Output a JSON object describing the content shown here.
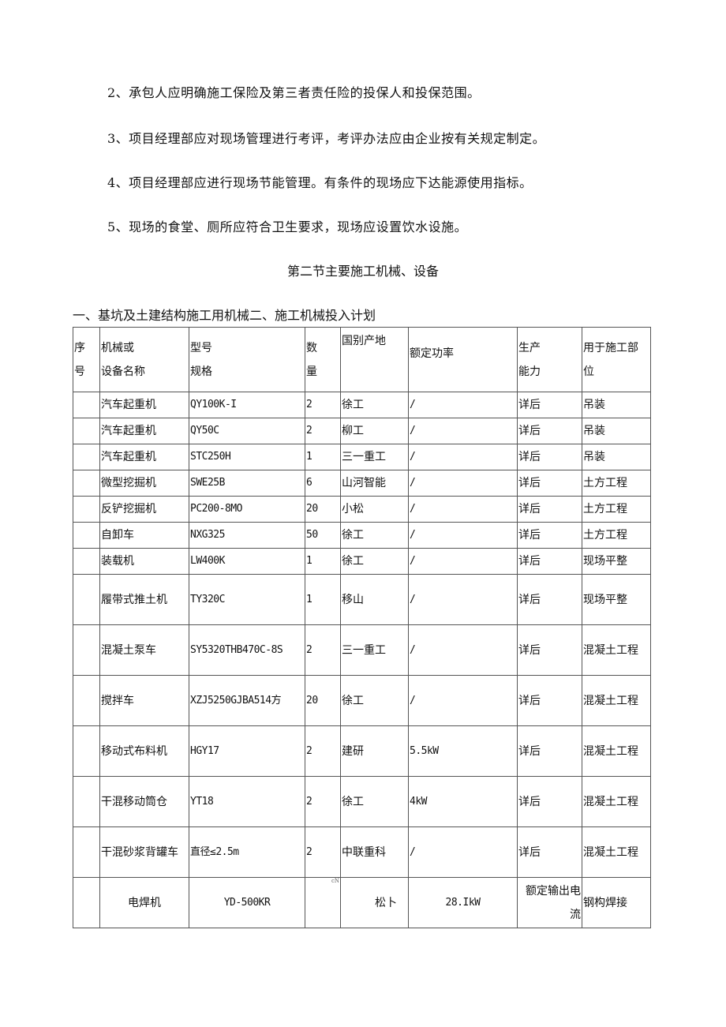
{
  "paragraphs": [
    "2、承包人应明确施工保险及第三者责任险的投保人和投保范围。",
    "3、项目经理部应对现场管理进行考评，考评办法应由企业按有关规定制定。",
    "4、项目经理部应进行现场节能管理。有条件的现场应下达能源使用指标。",
    "5、现场的食堂、厕所应符合卫生要求，现场应设置饮水设施。"
  ],
  "section_title": "第二节主要施工机械、设备",
  "subtitle": "一、基坑及土建结构施工用机械二、施工机械投入计划",
  "table": {
    "headers": [
      [
        "序",
        "号"
      ],
      [
        "机械或",
        "设备名称"
      ],
      [
        "型号",
        "规格"
      ],
      [
        "数",
        "量"
      ],
      [
        "国别产地"
      ],
      [
        "额定功率"
      ],
      [
        "生产",
        "能力"
      ],
      [
        "用于施工部",
        "位"
      ]
    ],
    "rows": [
      [
        "",
        "汽车起重机",
        "QY100K-I",
        "2",
        "徐工",
        "/",
        "详后",
        "吊装"
      ],
      [
        "",
        "汽车起重机",
        "QY50C",
        "2",
        "柳工",
        "/",
        "详后",
        "吊装"
      ],
      [
        "",
        "汽车起重机",
        "STC250H",
        "1",
        "三一重工",
        "/",
        "详后",
        "吊装"
      ],
      [
        "",
        "微型挖掘机",
        "SWE25B",
        "6",
        "山河智能",
        "/",
        "详后",
        "土方工程"
      ],
      [
        "",
        "反铲挖掘机",
        "PC200-8MO",
        "20",
        "小松",
        "/",
        "详后",
        "土方工程"
      ],
      [
        "",
        "自卸车",
        "NXG325",
        "50",
        "徐工",
        "/",
        "详后",
        "土方工程"
      ],
      [
        "",
        "装载机",
        "LW400K",
        "1",
        "徐工",
        "/",
        "详后",
        "现场平整"
      ],
      [
        "",
        "履带式推土机",
        "TY320C",
        "1",
        "移山",
        "/",
        "详后",
        "现场平整"
      ],
      [
        "",
        "混凝土泵车",
        "SY5320THB470C-8S",
        "2",
        "三一重工",
        "/",
        "详后",
        "混凝土工程"
      ],
      [
        "",
        "搅拌车",
        "XZJ5250GJBA514方",
        "20",
        "徐工",
        "/",
        "详后",
        "混凝土工程"
      ],
      [
        "",
        "移动式布料机",
        "HGY17",
        "2",
        "建研",
        "5.5kW",
        "详后",
        "混凝土工程"
      ],
      [
        "",
        "干混移动筒仓",
        "YT18",
        "2",
        "徐工",
        "4kW",
        "详后",
        "混凝土工程"
      ],
      [
        "",
        "干混砂浆背罐车",
        "直径≤2.5m",
        "2",
        "中联重科",
        "/",
        "详后",
        "混凝土工程"
      ],
      [
        "",
        "电焊机",
        "YD-500KR",
        "cN",
        "松卜",
        "28.IkW",
        "额定输出电流",
        "钢构焊接"
      ]
    ]
  }
}
